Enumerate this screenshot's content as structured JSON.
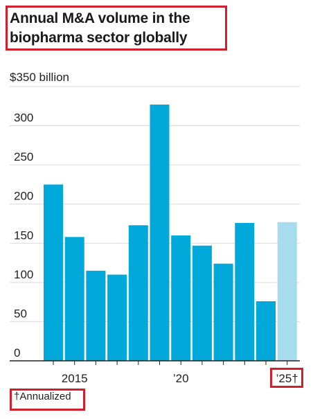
{
  "title_lines": [
    "Annual M&A volume in the",
    "biopharma sector globally"
  ],
  "footnote": "†Annualized",
  "colors": {
    "bar": "#00a9da",
    "bar_annualized": "#a6dced",
    "accent": "#d11f2f",
    "grid": "#d9d9d9"
  },
  "chart_data": {
    "type": "bar",
    "categories": [
      "2014",
      "2015",
      "2016",
      "2017",
      "2018",
      "2019",
      "2020",
      "2021",
      "2022",
      "2023",
      "2024",
      "2025"
    ],
    "values": [
      225,
      158,
      115,
      110,
      173,
      327,
      160,
      147,
      124,
      176,
      76,
      177
    ],
    "annualized": [
      false,
      false,
      false,
      false,
      false,
      false,
      false,
      false,
      false,
      false,
      false,
      true
    ],
    "ylabel_top": "$350 billion",
    "yticks": [
      "0",
      "50",
      "100",
      "150",
      "200",
      "250",
      "300"
    ],
    "ylim": [
      0,
      350
    ],
    "xtick_labels": [
      {
        "category": "2015",
        "label": "2015"
      },
      {
        "category": "2020",
        "label": "’20"
      },
      {
        "category": "2025",
        "label": "’25†"
      }
    ],
    "grid": true
  }
}
